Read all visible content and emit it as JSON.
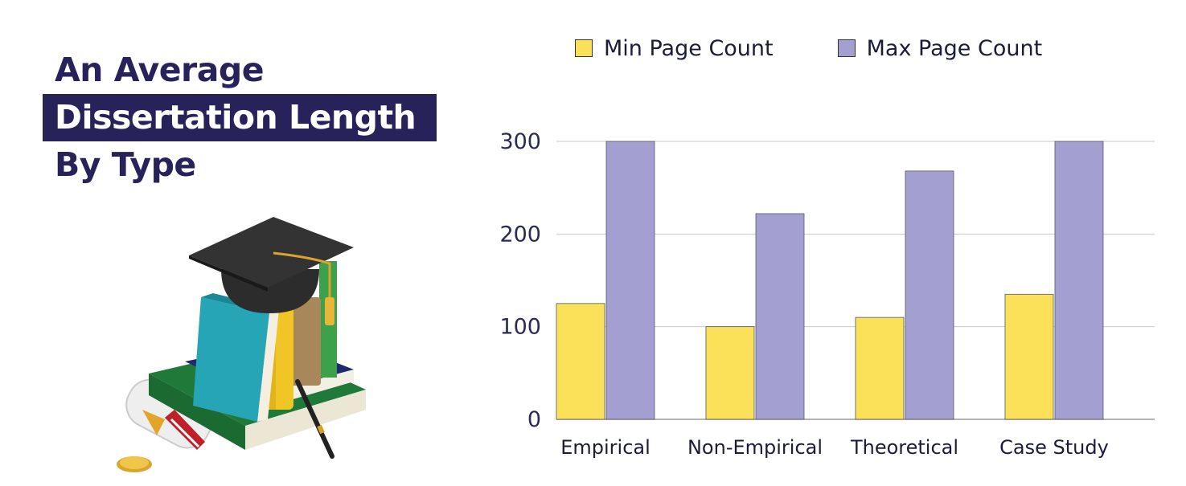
{
  "title": {
    "line1": "An Average",
    "line2": "Dissertation Length",
    "line3": "By Type"
  },
  "colors": {
    "title_dark": "#27235a",
    "min_series": "#fbe159",
    "max_series": "#a39fd0",
    "grid": "#c8c8cc"
  },
  "illustration": {
    "icon": "graduation-cap-books-diploma-illustration"
  },
  "chart_data": {
    "type": "bar",
    "title": "",
    "xlabel": "",
    "ylabel": "",
    "categories": [
      "Empirical",
      "Non-Empirical",
      "Theoretical",
      "Case Study"
    ],
    "series": [
      {
        "name": "Min Page Count",
        "color": "#fbe159",
        "values": [
          125,
          100,
          110,
          135
        ]
      },
      {
        "name": "Max Page Count",
        "color": "#a39fd0",
        "values": [
          300,
          222,
          268,
          300
        ]
      }
    ],
    "ylim": [
      0,
      300
    ],
    "yticks": [
      "0",
      "100",
      "200",
      "300"
    ],
    "grid": true,
    "legend_placement": "top"
  }
}
